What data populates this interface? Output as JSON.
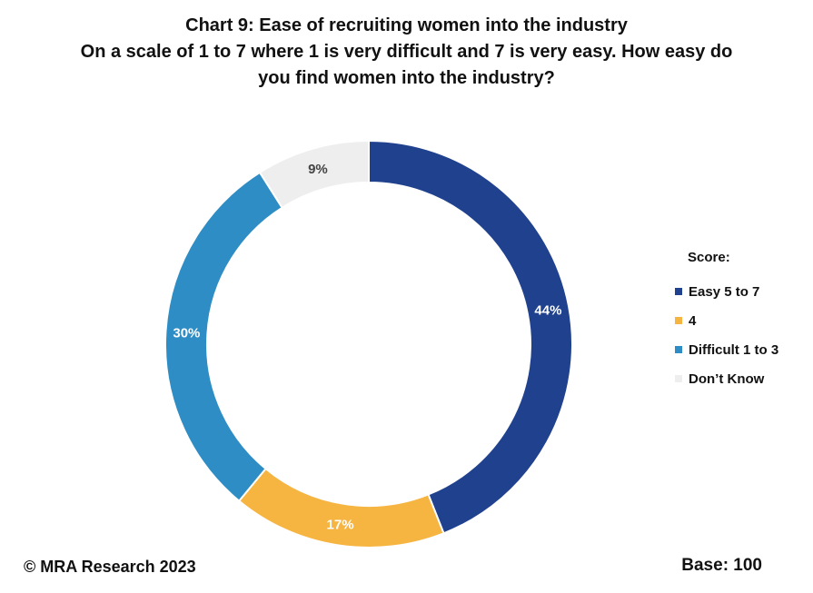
{
  "chart_data": {
    "type": "pie",
    "style": "donut",
    "title_lines": [
      "Chart 9: Ease of recruiting women into the industry",
      "On a scale of 1 to 7 where 1 is very difficult and 7 is very easy.  How easy do",
      "you find women into the industry?"
    ],
    "legend_title": "Score:",
    "legend_position": "right",
    "categories": [
      "Easy 5 to 7",
      "4",
      "Difficult 1 to 3",
      "Don’t Know"
    ],
    "values": [
      44,
      17,
      30,
      9
    ],
    "labels": [
      "44%",
      "17%",
      "30%",
      "9%"
    ],
    "colors": [
      "#1f418e",
      "#f6b441",
      "#2e8dc4",
      "#eeeeee"
    ],
    "label_colors": [
      "#ffffff",
      "#ffffff",
      "#ffffff",
      "#444444"
    ],
    "start": "top",
    "direction": "clockwise"
  },
  "footer": {
    "copyright": "© MRA Research 2023",
    "base": "Base: 100"
  }
}
